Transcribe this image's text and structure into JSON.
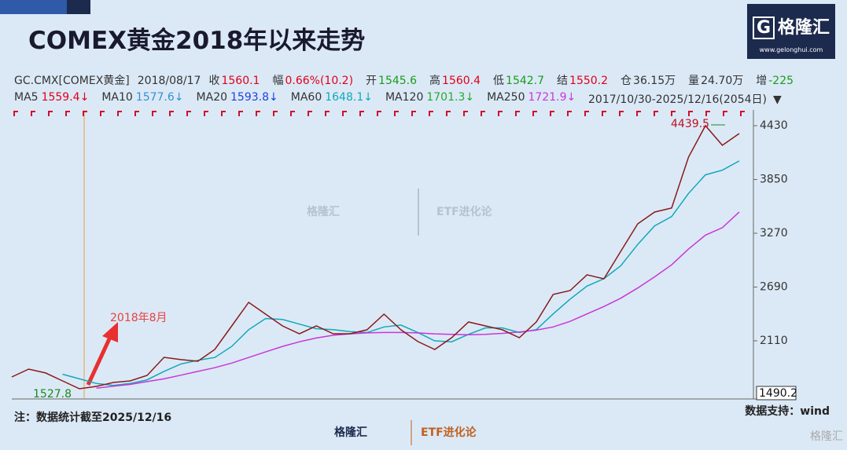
{
  "chart_data": {
    "type": "line",
    "title": "COMEX黄金2018年以来走势",
    "brand": "格隆汇",
    "brand_url": "www.gelonghui.com",
    "watermark": "ETF进化论",
    "quote": [
      {
        "label": "GC.CMX[COMEX黄金]",
        "color": "#333333"
      },
      {
        "label": "2018/08/17",
        "color": "#333333"
      },
      {
        "label": "收",
        "value": 1560.1,
        "color": "#e0001a"
      },
      {
        "label": "幅",
        "value": "0.66%(10.2)",
        "color": "#e0001a"
      },
      {
        "label": "开",
        "value": 1545.6,
        "color": "#1a9c1a"
      },
      {
        "label": "高",
        "value": 1560.4,
        "color": "#e0001a"
      },
      {
        "label": "低",
        "value": 1542.7,
        "color": "#1a9c1a"
      },
      {
        "label": "结",
        "value": 1550.2,
        "color": "#e0001a"
      },
      {
        "label": "仓",
        "value": "36.15万",
        "color": "#333333"
      },
      {
        "label": "量",
        "value": "24.70万",
        "color": "#333333"
      },
      {
        "label": "增",
        "value": -225,
        "color": "#1a9c1a"
      }
    ],
    "ma": [
      {
        "name": "MA5",
        "value": 1559.4,
        "arrow": "↓",
        "color": "#e0001a"
      },
      {
        "name": "MA10",
        "value": 1577.6,
        "arrow": "↓",
        "color": "#3a8fd0"
      },
      {
        "name": "MA20",
        "value": 1593.8,
        "arrow": "↓",
        "color": "#1f3fe0"
      },
      {
        "name": "MA60",
        "value": 1648.1,
        "arrow": "↓",
        "color": "#12a8b8",
        "values": [
          null,
          null,
          null,
          1750,
          1700,
          1650,
          1630,
          1650,
          1690,
          1780,
          1860,
          1900,
          1930,
          2050,
          2230,
          2350,
          2340,
          2290,
          2240,
          2230,
          2210,
          2200,
          2260,
          2280,
          2200,
          2110,
          2100,
          2180,
          2250,
          2250,
          2200,
          2230,
          2400,
          2560,
          2700,
          2780,
          2920,
          3150,
          3350,
          3450,
          3700,
          3900,
          3950,
          4050
        ]
      },
      {
        "name": "MA120",
        "value": 1701.3,
        "arrow": "↓",
        "color": "#2aa830"
      },
      {
        "name": "MA250",
        "value": 1721.9,
        "arrow": "↓",
        "color": "#c837d6",
        "values": [
          null,
          null,
          null,
          null,
          null,
          1600,
          1620,
          1640,
          1670,
          1700,
          1740,
          1780,
          1820,
          1870,
          1930,
          1990,
          2050,
          2100,
          2140,
          2170,
          2185,
          2195,
          2200,
          2200,
          2195,
          2185,
          2180,
          2175,
          2180,
          2190,
          2205,
          2225,
          2260,
          2320,
          2400,
          2480,
          2570,
          2680,
          2800,
          2930,
          3100,
          3250,
          3330,
          3500
        ]
      }
    ],
    "range_label": "2017/10/30-2025/12/16(2054日)",
    "series": [
      {
        "color": "#8a1a1a",
        "values": [
          1720,
          1805,
          1763,
          1678,
          1593,
          1619,
          1661,
          1678,
          1737,
          1932,
          1907,
          1890,
          2017,
          2271,
          2525,
          2398,
          2271,
          2186,
          2271,
          2186,
          2186,
          2229,
          2398,
          2229,
          2102,
          2017,
          2144,
          2313,
          2271,
          2229,
          2144,
          2313,
          2610,
          2652,
          2822,
          2779,
          3076,
          3372,
          3499,
          3542,
          4092,
          4431,
          4219,
          4346
        ]
      }
    ],
    "ylim": [
      1500,
      4600
    ],
    "yticks": [
      2110,
      2690,
      3270,
      3850,
      4430
    ],
    "min_label": 1490.2,
    "low": 1527.8,
    "high": 4439.5,
    "annotation": "2018年8月",
    "note": "注：数据统计截至2025/12/16",
    "source": "数据支持：wind"
  }
}
